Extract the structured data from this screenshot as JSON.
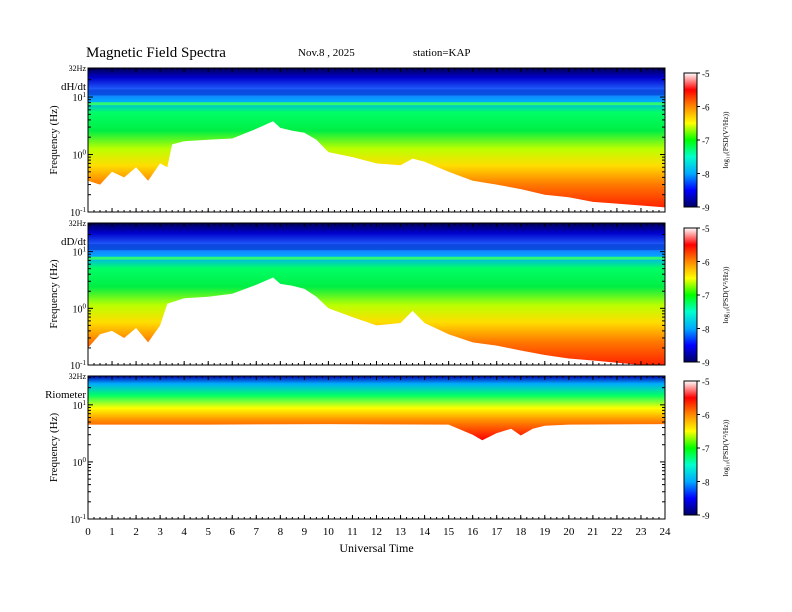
{
  "header": {
    "title": "Magnetic  Field  Spectra",
    "date": "Nov.8  , 2025",
    "station": "station=KAP"
  },
  "chart_data": {
    "type": "heatmap",
    "title": "Magnetic  Field  Spectra",
    "xlabel": "Universal  Time",
    "xlim": [
      0,
      24
    ],
    "x_ticks": [
      "0",
      "1",
      "2",
      "3",
      "4",
      "5",
      "6",
      "7",
      "8",
      "9",
      "10",
      "11",
      "12",
      "13",
      "14",
      "15",
      "16",
      "17",
      "18",
      "19",
      "20",
      "21",
      "22",
      "23",
      "24"
    ],
    "ylabel": "Frequency  (Hz)",
    "y_scale": "log",
    "ylim": [
      0.1,
      32
    ],
    "y_ticks": [
      {
        "value": 0.1,
        "base": "10",
        "exp": "-1"
      },
      {
        "value": 1,
        "base": "10",
        "exp": "0"
      },
      {
        "value": 10,
        "base": "10",
        "exp": "1"
      }
    ],
    "y_top_label": "32Hz",
    "colorbar": {
      "label": "log₁₀(PSD(V²/Hz))",
      "range": [
        -9,
        -5
      ],
      "ticks": [
        "-5",
        "-6",
        "-7",
        "-8",
        "-9"
      ],
      "colors": [
        "#000066",
        "#0000ff",
        "#00aaff",
        "#00ffcc",
        "#00ff00",
        "#ffff00",
        "#ff8800",
        "#ff0000",
        "#ffffff"
      ]
    },
    "panels": [
      {
        "name": "dH/dt",
        "noise_floor_hz": [
          [
            0,
            0.35
          ],
          [
            0.5,
            0.3
          ],
          [
            1,
            0.5
          ],
          [
            1.5,
            0.4
          ],
          [
            2,
            0.6
          ],
          [
            2.5,
            0.35
          ],
          [
            3,
            0.7
          ],
          [
            3.3,
            0.6
          ],
          [
            3.5,
            1.5
          ],
          [
            4,
            1.7
          ],
          [
            5,
            1.8
          ],
          [
            6,
            1.9
          ],
          [
            7,
            2.8
          ],
          [
            7.7,
            3.8
          ],
          [
            8,
            2.9
          ],
          [
            8.5,
            2.6
          ],
          [
            9,
            2.4
          ],
          [
            9.5,
            1.8
          ],
          [
            10,
            1.1
          ],
          [
            11,
            0.9
          ],
          [
            12,
            0.7
          ],
          [
            13,
            0.65
          ],
          [
            13.5,
            0.85
          ],
          [
            14,
            0.75
          ],
          [
            15,
            0.5
          ],
          [
            16,
            0.35
          ],
          [
            17,
            0.3
          ],
          [
            18,
            0.25
          ],
          [
            19,
            0.2
          ],
          [
            20,
            0.18
          ],
          [
            21,
            0.15
          ],
          [
            22,
            0.14
          ],
          [
            23,
            0.13
          ],
          [
            24,
            0.12
          ]
        ],
        "band_hz": [
          7.5,
          13
        ]
      },
      {
        "name": "dD/dt",
        "noise_floor_hz": [
          [
            0,
            0.2
          ],
          [
            0.5,
            0.35
          ],
          [
            1,
            0.4
          ],
          [
            1.5,
            0.3
          ],
          [
            2,
            0.45
          ],
          [
            2.5,
            0.25
          ],
          [
            3,
            0.5
          ],
          [
            3.3,
            1.2
          ],
          [
            4,
            1.5
          ],
          [
            5,
            1.6
          ],
          [
            6,
            1.8
          ],
          [
            7,
            2.6
          ],
          [
            7.7,
            3.5
          ],
          [
            8,
            2.7
          ],
          [
            8.5,
            2.5
          ],
          [
            9,
            2.2
          ],
          [
            9.5,
            1.6
          ],
          [
            10,
            1.0
          ],
          [
            11,
            0.7
          ],
          [
            12,
            0.5
          ],
          [
            13,
            0.55
          ],
          [
            13.5,
            0.9
          ],
          [
            14,
            0.55
          ],
          [
            15,
            0.35
          ],
          [
            16,
            0.25
          ],
          [
            17,
            0.22
          ],
          [
            18,
            0.18
          ],
          [
            19,
            0.15
          ],
          [
            20,
            0.13
          ],
          [
            21,
            0.12
          ],
          [
            22,
            0.11
          ],
          [
            23,
            0.1
          ],
          [
            24,
            0.1
          ]
        ],
        "band_hz": [
          7.5,
          13
        ]
      },
      {
        "name": "Riometer",
        "noise_floor_hz": [
          [
            0,
            4.5
          ],
          [
            5,
            4.5
          ],
          [
            10,
            4.6
          ],
          [
            15,
            4.5
          ],
          [
            16,
            3.0
          ],
          [
            16.4,
            2.4
          ],
          [
            17,
            3.2
          ],
          [
            17.6,
            3.8
          ],
          [
            18,
            2.9
          ],
          [
            18.5,
            3.8
          ],
          [
            19,
            4.3
          ],
          [
            20,
            4.5
          ],
          [
            24,
            4.6
          ]
        ],
        "band_hz": [
          5,
          32
        ]
      }
    ]
  }
}
